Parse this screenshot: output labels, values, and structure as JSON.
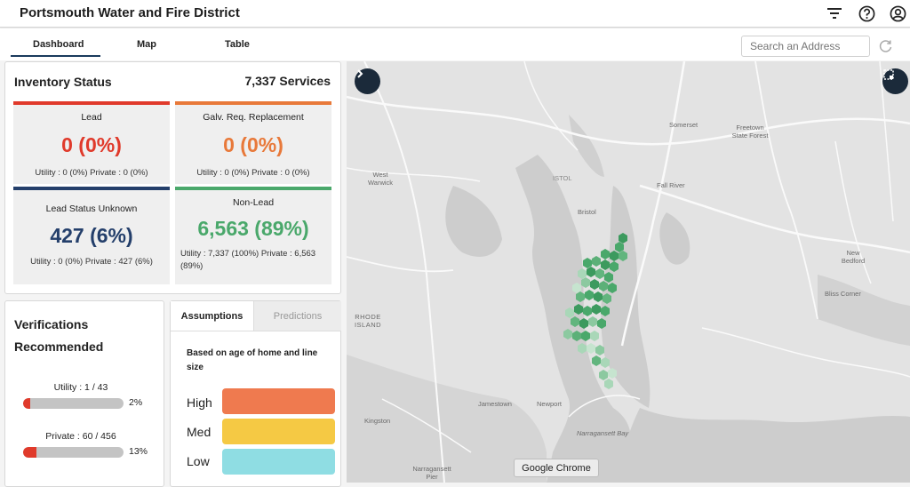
{
  "app": {
    "title": "Portsmouth Water and Fire District"
  },
  "header_icons": [
    "filter-icon",
    "help-icon",
    "account-icon"
  ],
  "tabs": [
    {
      "label": "Dashboard",
      "active": true
    },
    {
      "label": "Map",
      "active": false
    },
    {
      "label": "Table",
      "active": false
    }
  ],
  "search": {
    "placeholder": "Search an Address",
    "value": ""
  },
  "inventory": {
    "title": "Inventory Status",
    "total": "7,337 Services",
    "cards": [
      {
        "title": "Lead",
        "value": "0 (0%)",
        "sub": "Utility : 0 (0%) Private : 0 (0%)",
        "color": "#e03a2b"
      },
      {
        "title": "Galv. Req. Replacement",
        "value": "0 (0%)",
        "sub": "Utility : 0 (0%) Private : 0 (0%)",
        "color": "#e8793a"
      },
      {
        "title": "Lead Status Unknown",
        "value": "427 (6%)",
        "sub": "Utility : 0 (0%) Private : 427 (6%)",
        "color": "#243f6b"
      },
      {
        "title": "Non-Lead",
        "value": "6,563 (89%)",
        "sub": "Utility : 7,337 (100%) Private : 6,563 (89%)",
        "color": "#4aa86b"
      }
    ]
  },
  "verifications": {
    "title": "Verifications Recommended",
    "items": [
      {
        "label": "Utility : 1 / 43",
        "pct_label": "2%",
        "fraction": 0.02
      },
      {
        "label": "Private : 60 / 456",
        "pct_label": "13%",
        "fraction": 0.13
      }
    ]
  },
  "assumptions": {
    "tabs": [
      "Assumptions",
      "Predictions"
    ],
    "active_tab": "Assumptions",
    "description": "Based on age of home and line size",
    "levels": [
      {
        "label": "High",
        "color": "#ef7a4f"
      },
      {
        "label": "Med",
        "color": "#f5c944"
      },
      {
        "label": "Low",
        "color": "#8fdde3"
      }
    ]
  },
  "map": {
    "labels": [
      "Somerset",
      "Freetown State Forest",
      "West Warwick",
      "Fall River",
      "Bristol",
      "New Bedford",
      "Bliss Corner",
      "RHODE ISLAND",
      "Jamestown",
      "Newport",
      "Narragansett Bay",
      "Kingston",
      "Narragansett Pier",
      "ISTOL"
    ],
    "tooltip": "Google Chrome"
  },
  "colors": {
    "accent": "#1a3a5c",
    "map_button": "#1b2a3a",
    "water": "#cfcfcf",
    "land": "#e3e3e3",
    "hex_green": "#4aa86b"
  }
}
